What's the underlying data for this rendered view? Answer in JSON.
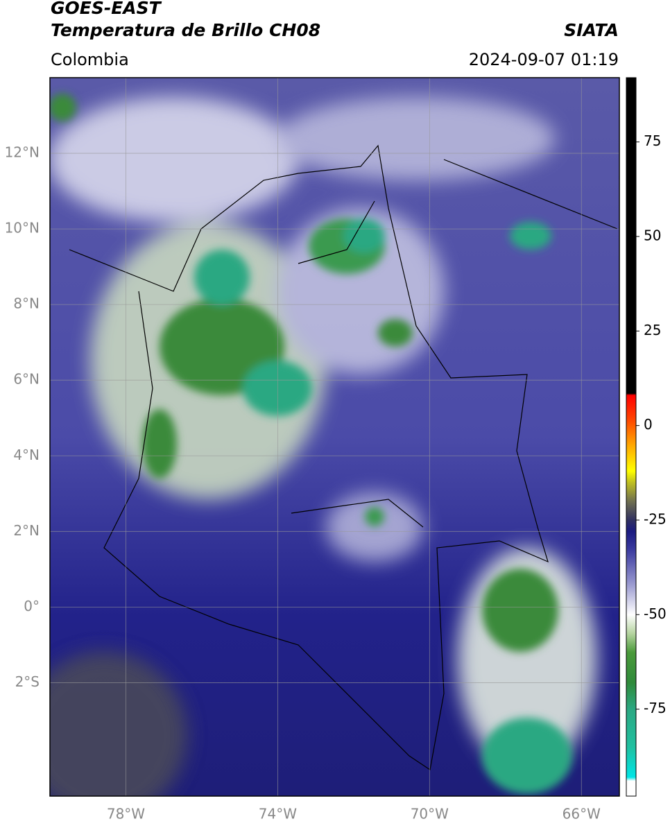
{
  "header": {
    "title": "GOES-EAST",
    "subtitle": "Temperatura de Brillo CH08",
    "brand": "SIATA",
    "region": "Colombia",
    "datetime": "2024-09-07 01:19"
  },
  "map": {
    "xlim": [
      -80,
      -65
    ],
    "ylim": [
      -5,
      14
    ],
    "xticks": [
      {
        "value": -78,
        "label": "78°W"
      },
      {
        "value": -74,
        "label": "74°W"
      },
      {
        "value": -70,
        "label": "70°W"
      },
      {
        "value": -66,
        "label": "66°W"
      }
    ],
    "yticks": [
      {
        "value": 12,
        "label": "12°N"
      },
      {
        "value": 10,
        "label": "10°N"
      },
      {
        "value": 8,
        "label": "8°N"
      },
      {
        "value": 6,
        "label": "6°N"
      },
      {
        "value": 4,
        "label": "4°N"
      },
      {
        "value": 2,
        "label": "2°N"
      },
      {
        "value": 0,
        "label": "0°"
      },
      {
        "value": -2,
        "label": "2°S"
      }
    ],
    "grid": true
  },
  "colorbar": {
    "lim": [
      -98,
      92
    ],
    "ticks": [
      75,
      50,
      25,
      0,
      -25,
      -50,
      -75
    ],
    "colormap": [
      [
        -98,
        "#ffffff"
      ],
      [
        -94,
        "#ffffff"
      ],
      [
        -93,
        "#00e5e5"
      ],
      [
        -85,
        "#20c0a0"
      ],
      [
        -75,
        "#2ba882"
      ],
      [
        -68,
        "#2f8a3a"
      ],
      [
        -60,
        "#4a9a3a"
      ],
      [
        -55,
        "#b5d4a0"
      ],
      [
        -50,
        "#ffffff"
      ],
      [
        -42,
        "#9a9ad0"
      ],
      [
        -33,
        "#3c3ca0"
      ],
      [
        -28,
        "#1a1a80"
      ],
      [
        -25,
        "#303060"
      ],
      [
        -20,
        "#707050"
      ],
      [
        -15,
        "#c0c020"
      ],
      [
        -12,
        "#ffff00"
      ],
      [
        -5,
        "#ffa500"
      ],
      [
        2,
        "#ff4000"
      ],
      [
        8,
        "#ff0000"
      ],
      [
        8.5,
        "#000000"
      ],
      [
        92,
        "#000000"
      ]
    ]
  }
}
